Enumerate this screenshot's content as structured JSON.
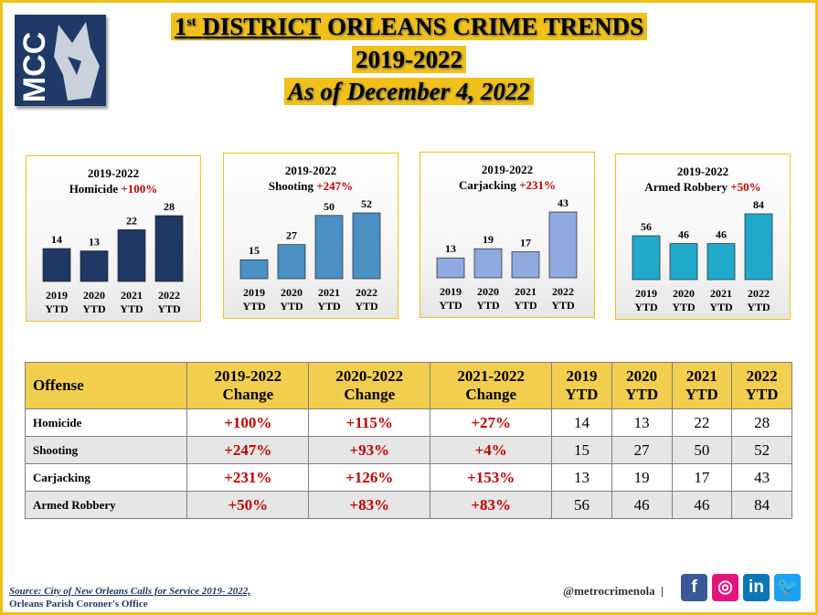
{
  "logo": {
    "text": "MCC"
  },
  "header": {
    "title_sup": "st",
    "title_num": "1",
    "title_district": "DISTRICT",
    "title_rest": " ORLEANS CRIME TRENDS",
    "years": "2019-2022",
    "as_of": "As of December 4, 2022"
  },
  "chart_data": [
    {
      "type": "bar",
      "title": "2019-2022",
      "offense": "Homicide",
      "change": "+100%",
      "categories": [
        "2019 YTD",
        "2020 YTD",
        "2021 YTD",
        "2022 YTD"
      ],
      "values": [
        14,
        13,
        22,
        28
      ],
      "color": "#1f3864"
    },
    {
      "type": "bar",
      "title": "2019-2022",
      "offense": "Shooting",
      "change": "+247%",
      "categories": [
        "2019 YTD",
        "2020 YTD",
        "2021 YTD",
        "2022 YTD"
      ],
      "values": [
        15,
        27,
        50,
        52
      ],
      "color": "#4a90c2"
    },
    {
      "type": "bar",
      "title": "2019-2022",
      "offense": "Carjacking",
      "change": "+231%",
      "categories": [
        "2019 YTD",
        "2020 YTD",
        "2021 YTD",
        "2022 YTD"
      ],
      "values": [
        13,
        19,
        17,
        43
      ],
      "color": "#8eaade"
    },
    {
      "type": "bar",
      "title": "2019-2022",
      "offense": "Armed Robbery",
      "change": "+50%",
      "categories": [
        "2019 YTD",
        "2020 YTD",
        "2021 YTD",
        "2022 YTD"
      ],
      "values": [
        56,
        46,
        46,
        84
      ],
      "color": "#1faacb"
    }
  ],
  "table": {
    "headers": [
      "Offense",
      "2019-2022 Change",
      "2020-2022 Change",
      "2021-2022 Change",
      "2019 YTD",
      "2020 YTD",
      "2021 YTD",
      "2022 YTD"
    ],
    "rows": [
      [
        "Homicide",
        "+100%",
        "+115%",
        "+27%",
        "14",
        "13",
        "22",
        "28"
      ],
      [
        "Shooting",
        "+247%",
        "+93%",
        "+4%",
        "15",
        "27",
        "50",
        "52"
      ],
      [
        "Carjacking",
        "+231%",
        "+126%",
        "+153%",
        "13",
        "19",
        "17",
        "43"
      ],
      [
        "Armed Robbery",
        "+50%",
        "+83%",
        "+83%",
        "56",
        "46",
        "46",
        "84"
      ]
    ]
  },
  "footer": {
    "source_label": "Source",
    "source_text": ": City of New Orleans Calls for Service 2019- 2022,",
    "source_line2": "Orleans Parish Coroner's Office",
    "handle": "@metrocrimenola",
    "separator": "|",
    "social": [
      {
        "icon": "facebook-icon",
        "glyph": "f",
        "color": "#3b5998"
      },
      {
        "icon": "instagram-icon",
        "glyph": "◎",
        "color": "#e4157d"
      },
      {
        "icon": "linkedin-icon",
        "glyph": "in",
        "color": "#0a77b5"
      },
      {
        "icon": "twitter-icon",
        "glyph": "🐦",
        "color": "#1da1f2"
      }
    ]
  }
}
